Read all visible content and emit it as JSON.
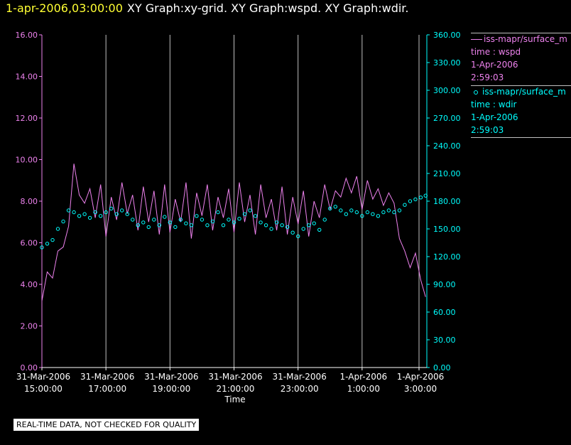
{
  "header": {
    "timestamp": "1-apr-2006,03:00:00",
    "graphs": "XY Graph:xy-grid.  XY Graph:wspd.  XY Graph:wdir."
  },
  "legend": [
    {
      "name": "iss-mapr/surface_m",
      "line2": "time : wspd",
      "line3": "1-Apr-2006",
      "line4": "2:59:03"
    },
    {
      "name": "iss-mapr/surface_m",
      "line2": "time : wdir",
      "line3": "1-Apr-2006",
      "line4": "2:59:03"
    }
  ],
  "disclaimer": "REAL-TIME DATA, NOT CHECKED FOR QUALITY",
  "colors": {
    "wspd": "#ee82ee",
    "wdir": "#00ffff",
    "grid": "#c0c0c0",
    "stamp": "#ffff33"
  },
  "chart_data": {
    "type": "line",
    "xlabel": "Time",
    "x_ticks": [
      [
        "31-Mar-2006",
        "15:00:00"
      ],
      [
        "31-Mar-2006",
        "17:00:00"
      ],
      [
        "31-Mar-2006",
        "19:00:00"
      ],
      [
        "31-Mar-2006",
        "21:00:00"
      ],
      [
        "31-Mar-2006",
        "23:00:00"
      ],
      [
        "1-Apr-2006",
        "1:00:00"
      ],
      [
        "1-Apr-2006",
        "3:00:00"
      ]
    ],
    "xlim": [
      "31-Mar-2006 15:00:00",
      "1-Apr-2006 3:00:00"
    ],
    "grid": true,
    "y_left": {
      "ylim": [
        0,
        16
      ],
      "ticks": [
        "0.00",
        "2.00",
        "4.00",
        "6.00",
        "8.00",
        "10.00",
        "12.00",
        "14.00",
        "16.00"
      ]
    },
    "y_right": {
      "ylim": [
        0,
        360
      ],
      "ticks": [
        "0.00",
        "30.00",
        "60.00",
        "90.00",
        "120.00",
        "150.00",
        "180.00",
        "210.00",
        "240.00",
        "270.00",
        "300.00",
        "330.00",
        "360.00"
      ]
    },
    "series": [
      {
        "name": "wspd",
        "style": "line",
        "axis": "left",
        "times": [
          "15:00",
          "15:10",
          "15:20",
          "15:30",
          "15:40",
          "15:50",
          "16:00",
          "16:10",
          "16:20",
          "16:30",
          "16:40",
          "16:50",
          "17:00",
          "17:10",
          "17:20",
          "17:30",
          "17:40",
          "17:50",
          "18:00",
          "18:10",
          "18:20",
          "18:30",
          "18:40",
          "18:50",
          "19:00",
          "19:10",
          "19:20",
          "19:30",
          "19:40",
          "19:50",
          "20:00",
          "20:10",
          "20:20",
          "20:30",
          "20:40",
          "20:50",
          "21:00",
          "21:10",
          "21:20",
          "21:30",
          "21:40",
          "21:50",
          "22:00",
          "22:10",
          "22:20",
          "22:30",
          "22:40",
          "22:50",
          "23:00",
          "23:10",
          "23:20",
          "23:30",
          "23:40",
          "23:50",
          "00:00",
          "00:10",
          "00:20",
          "00:30",
          "00:40",
          "00:50",
          "01:00",
          "01:10",
          "01:20",
          "01:30",
          "01:40",
          "01:50",
          "02:00",
          "02:10",
          "02:20",
          "02:30",
          "02:40",
          "02:50",
          "02:59"
        ],
        "values": [
          3.2,
          4.6,
          4.3,
          5.6,
          5.8,
          6.8,
          9.8,
          8.3,
          7.9,
          8.6,
          7.2,
          8.8,
          6.3,
          8.2,
          7.1,
          8.9,
          7.4,
          8.3,
          6.6,
          8.7,
          7.0,
          8.5,
          6.4,
          8.8,
          6.5,
          8.1,
          7.0,
          8.9,
          6.2,
          8.4,
          7.3,
          8.8,
          6.6,
          8.2,
          7.2,
          8.6,
          6.5,
          8.9,
          7.0,
          8.3,
          6.4,
          8.8,
          7.2,
          8.1,
          6.6,
          8.7,
          6.4,
          8.2,
          6.9,
          8.5,
          6.3,
          8.0,
          7.2,
          8.8,
          7.6,
          8.5,
          8.2,
          9.1,
          8.4,
          9.2,
          7.6,
          9.0,
          8.1,
          8.6,
          7.8,
          8.4,
          7.9,
          6.2,
          5.6,
          4.8,
          5.5,
          4.2,
          3.4
        ]
      },
      {
        "name": "wdir",
        "style": "markers",
        "axis": "right",
        "times": [
          "15:00",
          "15:10",
          "15:20",
          "15:30",
          "15:40",
          "15:50",
          "16:00",
          "16:10",
          "16:20",
          "16:30",
          "16:40",
          "16:50",
          "17:00",
          "17:10",
          "17:20",
          "17:30",
          "17:40",
          "17:50",
          "18:00",
          "18:10",
          "18:20",
          "18:30",
          "18:40",
          "18:50",
          "19:00",
          "19:10",
          "19:20",
          "19:30",
          "19:40",
          "19:50",
          "20:00",
          "20:10",
          "20:20",
          "20:30",
          "20:40",
          "20:50",
          "21:00",
          "21:10",
          "21:20",
          "21:30",
          "21:40",
          "21:50",
          "22:00",
          "22:10",
          "22:20",
          "22:30",
          "22:40",
          "22:50",
          "23:00",
          "23:10",
          "23:20",
          "23:30",
          "23:40",
          "23:50",
          "00:00",
          "00:10",
          "00:20",
          "00:30",
          "00:40",
          "00:50",
          "01:00",
          "01:10",
          "01:20",
          "01:30",
          "01:40",
          "01:50",
          "02:00",
          "02:10",
          "02:20",
          "02:30",
          "02:40",
          "02:50",
          "02:59"
        ],
        "values": [
          130,
          134,
          138,
          150,
          158,
          170,
          168,
          164,
          166,
          162,
          168,
          164,
          168,
          172,
          166,
          170,
          166,
          160,
          154,
          157,
          152,
          160,
          154,
          163,
          157,
          152,
          160,
          156,
          154,
          164,
          160,
          154,
          158,
          168,
          154,
          160,
          157,
          161,
          166,
          170,
          164,
          157,
          154,
          150,
          157,
          154,
          152,
          146,
          142,
          150,
          154,
          156,
          149,
          160,
          172,
          174,
          170,
          166,
          170,
          168,
          164,
          168,
          166,
          164,
          168,
          170,
          168,
          170,
          176,
          180,
          182,
          184,
          186
        ]
      }
    ]
  }
}
